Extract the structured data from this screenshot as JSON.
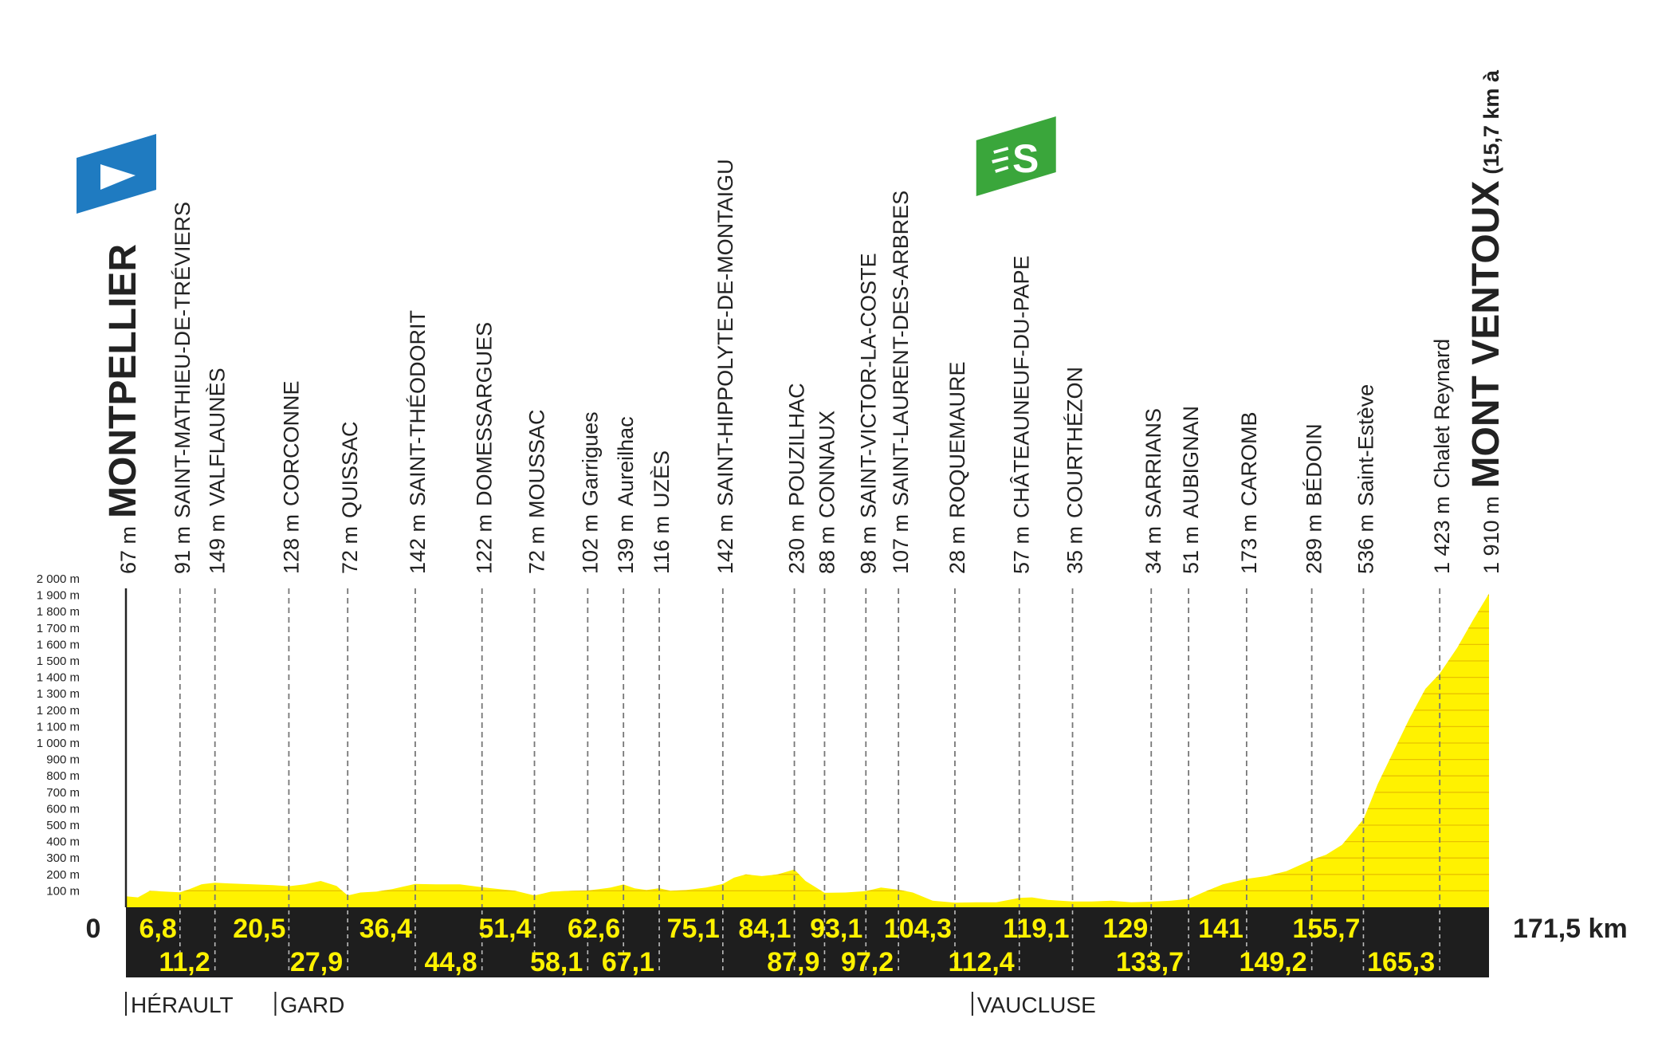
{
  "chart_data": {
    "type": "area",
    "title": "",
    "xlabel": "",
    "ylabel": "",
    "xlim": [
      0,
      171.5
    ],
    "ylim": [
      0,
      2000
    ],
    "x_start_label": "0",
    "x_end_label": "171,5 km",
    "y_ticks": [
      {
        "value": 100,
        "label": "100 m"
      },
      {
        "value": 200,
        "label": "200 m"
      },
      {
        "value": 300,
        "label": "300 m"
      },
      {
        "value": 400,
        "label": "400 m"
      },
      {
        "value": 500,
        "label": "500 m"
      },
      {
        "value": 600,
        "label": "600 m"
      },
      {
        "value": 700,
        "label": "700 m"
      },
      {
        "value": 800,
        "label": "800 m"
      },
      {
        "value": 900,
        "label": "900 m"
      },
      {
        "value": 1000,
        "label": "1 000 m"
      },
      {
        "value": 1100,
        "label": "1 100 m"
      },
      {
        "value": 1200,
        "label": "1 200 m"
      },
      {
        "value": 1300,
        "label": "1 300 m"
      },
      {
        "value": 1400,
        "label": "1 400 m"
      },
      {
        "value": 1500,
        "label": "1 500 m"
      },
      {
        "value": 1600,
        "label": "1 600 m"
      },
      {
        "value": 1700,
        "label": "1 700 m"
      },
      {
        "value": 1800,
        "label": "1 800 m"
      },
      {
        "value": 1900,
        "label": "1 900 m"
      },
      {
        "value": 2000,
        "label": "2 000 m"
      }
    ],
    "profile": [
      [
        0,
        67
      ],
      [
        1.5,
        60
      ],
      [
        3,
        100
      ],
      [
        5,
        95
      ],
      [
        6.8,
        91
      ],
      [
        8,
        110
      ],
      [
        9.5,
        140
      ],
      [
        11.2,
        149
      ],
      [
        13,
        145
      ],
      [
        16,
        140
      ],
      [
        18.5,
        135
      ],
      [
        20.5,
        128
      ],
      [
        22.5,
        140
      ],
      [
        24.5,
        160
      ],
      [
        26.5,
        130
      ],
      [
        27.9,
        72
      ],
      [
        29.5,
        90
      ],
      [
        31.5,
        95
      ],
      [
        33.5,
        110
      ],
      [
        36.4,
        142
      ],
      [
        39,
        140
      ],
      [
        42,
        140
      ],
      [
        44.8,
        122
      ],
      [
        47,
        110
      ],
      [
        49,
        100
      ],
      [
        51.4,
        72
      ],
      [
        53.5,
        95
      ],
      [
        56,
        100
      ],
      [
        58.1,
        102
      ],
      [
        59.5,
        110
      ],
      [
        61,
        120
      ],
      [
        62.6,
        139
      ],
      [
        64,
        115
      ],
      [
        65.5,
        105
      ],
      [
        67.1,
        116
      ],
      [
        68.5,
        100
      ],
      [
        70.5,
        105
      ],
      [
        73,
        120
      ],
      [
        75.1,
        142
      ],
      [
        76.5,
        180
      ],
      [
        78,
        200
      ],
      [
        80,
        190
      ],
      [
        82,
        200
      ],
      [
        84.1,
        230
      ],
      [
        85.5,
        160
      ],
      [
        87.9,
        88
      ],
      [
        90.5,
        90
      ],
      [
        93.1,
        98
      ],
      [
        95,
        120
      ],
      [
        97.2,
        107
      ],
      [
        99,
        90
      ],
      [
        101.5,
        40
      ],
      [
        104.3,
        28
      ],
      [
        107,
        30
      ],
      [
        109.5,
        30
      ],
      [
        112.4,
        57
      ],
      [
        114,
        60
      ],
      [
        116,
        45
      ],
      [
        119.1,
        35
      ],
      [
        121.5,
        35
      ],
      [
        124,
        40
      ],
      [
        126.5,
        30
      ],
      [
        129,
        34
      ],
      [
        131.5,
        40
      ],
      [
        133.7,
        51
      ],
      [
        135.5,
        90
      ],
      [
        138,
        140
      ],
      [
        141,
        173
      ],
      [
        143.5,
        190
      ],
      [
        146,
        220
      ],
      [
        149.2,
        289
      ],
      [
        151,
        320
      ],
      [
        153,
        380
      ],
      [
        155.7,
        536
      ],
      [
        157.5,
        750
      ],
      [
        159.5,
        950
      ],
      [
        161.5,
        1150
      ],
      [
        163.5,
        1330
      ],
      [
        165.3,
        1423
      ],
      [
        167.5,
        1580
      ],
      [
        169.5,
        1750
      ],
      [
        171.5,
        1910
      ]
    ],
    "places": [
      {
        "km": 0,
        "alt": "67 m",
        "name": "MONTPELLIER",
        "major": true
      },
      {
        "km": 6.8,
        "alt": "91 m",
        "name": "SAINT-MATHIEU-DE-TRÉVIERS"
      },
      {
        "km": 11.2,
        "alt": "149 m",
        "name": "VALFLAUNÈS"
      },
      {
        "km": 20.5,
        "alt": "128 m",
        "name": "CORCONNE"
      },
      {
        "km": 27.9,
        "alt": "72 m",
        "name": "QUISSAC"
      },
      {
        "km": 36.4,
        "alt": "142 m",
        "name": "SAINT-THÉODORIT"
      },
      {
        "km": 44.8,
        "alt": "122 m",
        "name": "DOMESSARGUES"
      },
      {
        "km": 51.4,
        "alt": "72 m",
        "name": "MOUSSAC"
      },
      {
        "km": 58.1,
        "alt": "102 m",
        "name": "Garrigues"
      },
      {
        "km": 62.6,
        "alt": "139 m",
        "name": "Aureilhac"
      },
      {
        "km": 67.1,
        "alt": "116 m",
        "name": "UZÈS"
      },
      {
        "km": 75.1,
        "alt": "142 m",
        "name": "SAINT-HIPPOLYTE-DE-MONTAIGU"
      },
      {
        "km": 84.1,
        "alt": "230 m",
        "name": "POUZILHAC"
      },
      {
        "km": 87.9,
        "alt": "88 m",
        "name": "CONNAUX"
      },
      {
        "km": 93.1,
        "alt": "98 m",
        "name": "SAINT-VICTOR-LA-COSTE"
      },
      {
        "km": 97.2,
        "alt": "107 m",
        "name": "SAINT-LAURENT-DES-ARBRES"
      },
      {
        "km": 104.3,
        "alt": "28 m",
        "name": "ROQUEMAURE"
      },
      {
        "km": 112.4,
        "alt": "57 m",
        "name": "CHÂTEAUNEUF-DU-PAPE"
      },
      {
        "km": 119.1,
        "alt": "35 m",
        "name": "COURTHÉZON"
      },
      {
        "km": 129,
        "alt": "34 m",
        "name": "SARRIANS"
      },
      {
        "km": 133.7,
        "alt": "51 m",
        "name": "AUBIGNAN"
      },
      {
        "km": 141,
        "alt": "173 m",
        "name": "CAROMB"
      },
      {
        "km": 149.2,
        "alt": "289 m",
        "name": "BÉDOIN"
      },
      {
        "km": 155.7,
        "alt": "536 m",
        "name": "Saint-Estève"
      },
      {
        "km": 165.3,
        "alt": "1 423 m",
        "name": "Chalet Reynard"
      },
      {
        "km": 171.5,
        "alt": "1 910 m",
        "name": "MONT VENTOUX",
        "major": true,
        "suffix": "(15,7 km à"
      }
    ],
    "distances": [
      {
        "km": 6.8,
        "label": "6,8",
        "row": 1
      },
      {
        "km": 11.2,
        "label": "11,2",
        "row": 2
      },
      {
        "km": 20.5,
        "label": "20,5",
        "row": 1
      },
      {
        "km": 27.9,
        "label": "27,9",
        "row": 2
      },
      {
        "km": 36.4,
        "label": "36,4",
        "row": 1
      },
      {
        "km": 44.8,
        "label": "44,8",
        "row": 2
      },
      {
        "km": 51.4,
        "label": "51,4",
        "row": 1
      },
      {
        "km": 58.1,
        "label": "58,1",
        "row": 2
      },
      {
        "km": 62.6,
        "label": "62,6",
        "row": 1
      },
      {
        "km": 67.1,
        "label": "67,1",
        "row": 2
      },
      {
        "km": 75.1,
        "label": "75,1",
        "row": 1
      },
      {
        "km": 84.1,
        "label": "84,1",
        "row": 1
      },
      {
        "km": 87.9,
        "label": "87,9",
        "row": 2
      },
      {
        "km": 93.1,
        "label": "93,1",
        "row": 1
      },
      {
        "km": 97.2,
        "label": "97,2",
        "row": 2
      },
      {
        "km": 104.3,
        "label": "104,3",
        "row": 1
      },
      {
        "km": 112.4,
        "label": "112,4",
        "row": 2
      },
      {
        "km": 119.1,
        "label": "119,1",
        "row": 1
      },
      {
        "km": 129,
        "label": "129",
        "row": 1
      },
      {
        "km": 133.7,
        "label": "133,7",
        "row": 2
      },
      {
        "km": 141,
        "label": "141",
        "row": 1
      },
      {
        "km": 149.2,
        "label": "149,2",
        "row": 2
      },
      {
        "km": 155.7,
        "label": "155,7",
        "row": 1
      },
      {
        "km": 165.3,
        "label": "165,3",
        "row": 2
      }
    ],
    "departments": [
      {
        "km": 0,
        "label": "HÉRAULT"
      },
      {
        "km": 18.8,
        "label": "GARD"
      },
      {
        "km": 106.5,
        "label": "VAUCLUSE"
      }
    ],
    "markers": [
      {
        "type": "start-flag",
        "km": 0,
        "color": "#1f7bc1"
      },
      {
        "type": "sprint-flag",
        "km": 112.4,
        "label": "S",
        "color": "#3aa63b"
      }
    ],
    "colors": {
      "fill": "#fff200",
      "bar": "#1e1e1e",
      "bar_text": "#fff200",
      "text": "#222222",
      "flag_arrow": "#ffffff"
    }
  }
}
